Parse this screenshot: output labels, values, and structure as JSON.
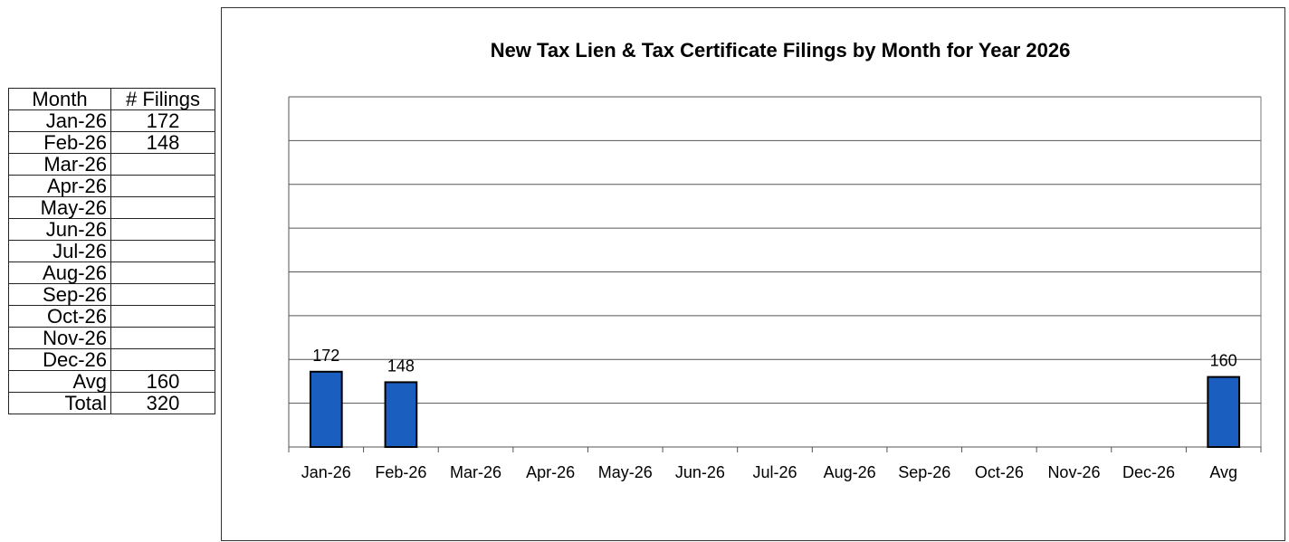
{
  "table": {
    "headers": [
      "Month",
      "# Filings"
    ],
    "rows": [
      {
        "month": "Jan-26",
        "filings": "172"
      },
      {
        "month": "Feb-26",
        "filings": "148"
      },
      {
        "month": "Mar-26",
        "filings": ""
      },
      {
        "month": "Apr-26",
        "filings": ""
      },
      {
        "month": "May-26",
        "filings": ""
      },
      {
        "month": "Jun-26",
        "filings": ""
      },
      {
        "month": "Jul-26",
        "filings": ""
      },
      {
        "month": "Aug-26",
        "filings": ""
      },
      {
        "month": "Sep-26",
        "filings": ""
      },
      {
        "month": "Oct-26",
        "filings": ""
      },
      {
        "month": "Nov-26",
        "filings": ""
      },
      {
        "month": "Dec-26",
        "filings": ""
      },
      {
        "month": "Avg",
        "filings": "160"
      },
      {
        "month": "Total",
        "filings": "320"
      }
    ]
  },
  "chart_data": {
    "type": "bar",
    "title": "New Tax Lien & Tax Certificate Filings by Month for Year 2026",
    "xlabel": "",
    "ylabel": "",
    "categories": [
      "Jan-26",
      "Feb-26",
      "Mar-26",
      "Apr-26",
      "May-26",
      "Jun-26",
      "Jul-26",
      "Aug-26",
      "Sep-26",
      "Oct-26",
      "Nov-26",
      "Dec-26",
      "Avg"
    ],
    "values": [
      172,
      148,
      null,
      null,
      null,
      null,
      null,
      null,
      null,
      null,
      null,
      null,
      160
    ],
    "data_labels": [
      "172",
      "148",
      "",
      "",
      "",
      "",
      "",
      "",
      "",
      "",
      "",
      "",
      "160"
    ],
    "ylim": [
      0,
      800
    ],
    "gridlines": [
      100,
      200,
      300,
      400,
      500,
      600,
      700,
      800
    ],
    "grid": true,
    "legend": "none",
    "bar_color": "#1a5fbf",
    "bar_edge_color": "#000000"
  }
}
